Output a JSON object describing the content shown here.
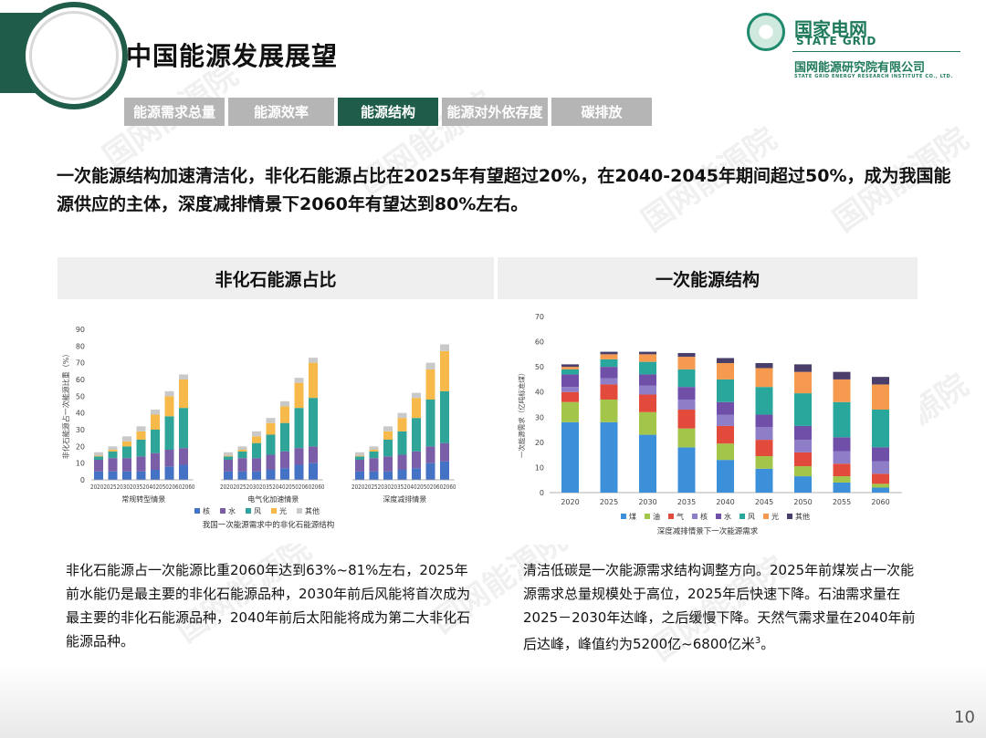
{
  "title": "中国能源发展展望",
  "logo": {
    "cn": "国家电网",
    "en": "STATE GRID",
    "org": "国网能源研究院有限公司",
    "org_en": "STATE GRID ENERGY RESEARCH INSTITUTE CO., LTD."
  },
  "tabs": [
    {
      "label": "能源需求总量",
      "active": false
    },
    {
      "label": "能源效率",
      "active": false
    },
    {
      "label": "能源结构",
      "active": true
    },
    {
      "label": "能源对外依存度",
      "active": false
    },
    {
      "label": "碳排放",
      "active": false
    }
  ],
  "headline": "一次能源结构加速清洁化，非化石能源占比在2025年有望超过20%，在2040-2045年期间超过50%，成为我国能源供应的主体，深度减排情景下2060年有望达到80%左右。",
  "left_panel": {
    "header": "非化石能源占比",
    "description": "非化石能源占一次能源比重2060年达到63%~81%左右，2025年前水能仍是最主要的非化石能源品种，2030年前后风能将首次成为最主要的非化石能源品种，2040年前后太阳能将成为第二大非化石能源品种。"
  },
  "right_panel": {
    "header": "一次能源结构",
    "description_main": "清洁低碳是一次能源需求结构调整方向。2025年前煤炭占一次能源需求总量规模处于高位，2025年后快速下降。石油需求量在2025－2030年达峰，之后缓慢下降。天然气需求量在2040年前后达峰，峰值约为5200亿~6800亿米",
    "description_sup": "3",
    "description_end": "。"
  },
  "page_number": "10",
  "watermark": "国网能源院",
  "colors": {
    "brand_green": "#1f5d4a",
    "tab_inactive": "#b5b5b5",
    "nuclear": "#4472c4",
    "hydro": "#7a5fa8",
    "wind": "#2fa59a",
    "solar": "#f6b94a",
    "other_left": "#c9c9c9",
    "coal": "#3c90d9",
    "oil": "#a3c64a",
    "gas": "#e24b3c",
    "nuclear_right": "#8e7ec8",
    "hydro_right": "#6f4fa8",
    "wind_right": "#2aa79c",
    "solar_right": "#f59a4e",
    "other_right": "#4a3f6b"
  },
  "chart_data": [
    {
      "type": "bar",
      "stacked": true,
      "title": "我国一次能源需求中的非化石能源结构",
      "ylabel": "非化石能源占一次能源比重（%）",
      "ylim": [
        0,
        90
      ],
      "yticks": [
        0,
        10,
        20,
        30,
        40,
        50,
        60,
        70,
        80,
        90
      ],
      "x": [
        "2020",
        "2025",
        "2030",
        "2035",
        "2040",
        "2050",
        "2060"
      ],
      "x_tick_text": "20202025203020352040205020602060",
      "groups": [
        {
          "name": "常规转型情景",
          "stacks": [
            [
              5,
              7,
              2,
              0.5,
              2
            ],
            [
              5,
              8,
              4,
              1,
              2
            ],
            [
              5,
              8,
              7,
              3,
              3
            ],
            [
              5,
              9,
              10,
              5,
              3
            ],
            [
              6,
              10,
              14,
              9,
              3
            ],
            [
              8,
              10,
              20,
              12,
              3
            ],
            [
              9,
              10,
              24,
              17,
              3
            ]
          ]
        },
        {
          "name": "电气化加速情景",
          "stacks": [
            [
              5,
              7,
              2,
              0.5,
              2
            ],
            [
              5,
              8,
              4,
              1,
              2
            ],
            [
              5,
              8,
              9,
              4,
              3
            ],
            [
              6,
              9,
              12,
              7,
              3
            ],
            [
              7,
              10,
              17,
              10,
              3
            ],
            [
              9,
              10,
              24,
              15,
              3
            ],
            [
              10,
              10,
              29,
              21,
              3
            ]
          ]
        },
        {
          "name": "深度减排情景",
          "stacks": [
            [
              5,
              7,
              2,
              0.5,
              2
            ],
            [
              5,
              8,
              4,
              1,
              2
            ],
            [
              5,
              9,
              10,
              5,
              3
            ],
            [
              6,
              9,
              14,
              8,
              3
            ],
            [
              7,
              10,
              20,
              12,
              3
            ],
            [
              10,
              10,
              28,
              18,
              4
            ],
            [
              11,
              11,
              31,
              24,
              4
            ]
          ]
        }
      ],
      "series": [
        {
          "name": "核"
        },
        {
          "name": "水"
        },
        {
          "name": "风"
        },
        {
          "name": "光"
        },
        {
          "name": "其他"
        }
      ]
    },
    {
      "type": "bar",
      "stacked": true,
      "title": "深度减排情景下一次能源需求",
      "ylabel": "一次能源需求（亿吨标准煤）",
      "ylim": [
        0,
        70
      ],
      "yticks": [
        0,
        10,
        20,
        30,
        40,
        50,
        60,
        70
      ],
      "categories": [
        "2020",
        "2025",
        "2030",
        "2035",
        "2040",
        "2045",
        "2050",
        "2055",
        "2060"
      ],
      "series": [
        {
          "name": "煤",
          "values": [
            28,
            28,
            23,
            18,
            13,
            9.5,
            6.5,
            4,
            2
          ]
        },
        {
          "name": "油",
          "values": [
            8,
            9,
            9,
            7.5,
            6.5,
            5,
            4,
            2.5,
            1.5
          ]
        },
        {
          "name": "气",
          "values": [
            4,
            6,
            7,
            7.5,
            7,
            6.5,
            5.5,
            5,
            4
          ]
        },
        {
          "name": "核",
          "values": [
            2,
            2.5,
            3.5,
            4,
            4.5,
            5,
            5,
            5,
            5
          ]
        },
        {
          "name": "水",
          "values": [
            5,
            4.5,
            4.5,
            5,
            5,
            5,
            5.5,
            5.5,
            5.5
          ]
        },
        {
          "name": "风",
          "values": [
            2,
            3,
            5,
            7,
            9,
            11,
            13,
            14,
            15
          ]
        },
        {
          "name": "光",
          "values": [
            1,
            2,
            3,
            5,
            6.5,
            7.5,
            8.5,
            9,
            10
          ]
        },
        {
          "name": "其他",
          "values": [
            1,
            1,
            1,
            1.5,
            2,
            2,
            3,
            3,
            3
          ]
        }
      ]
    }
  ]
}
